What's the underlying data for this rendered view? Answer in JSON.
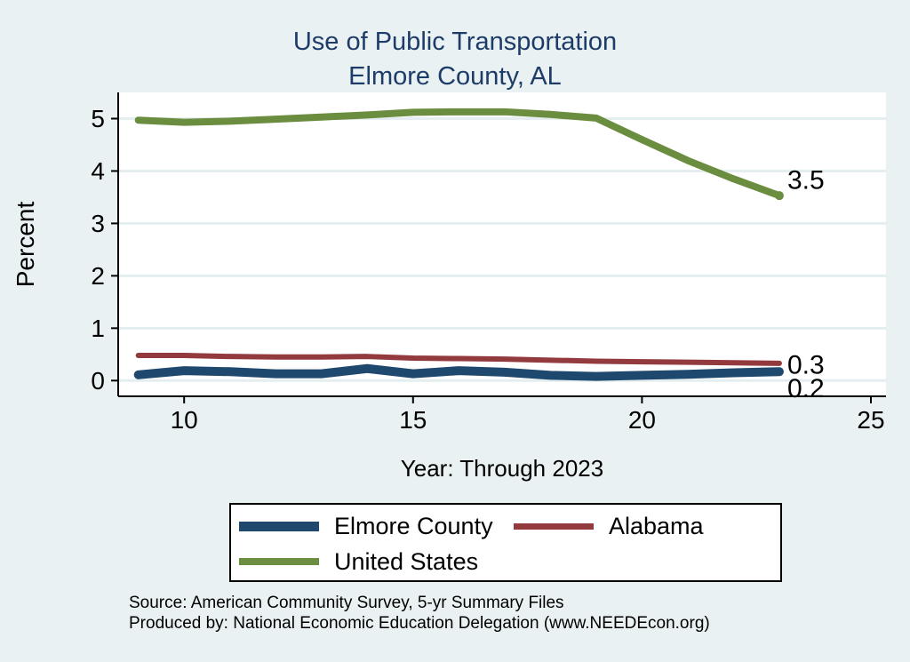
{
  "colors": {
    "background": "#e9f1f2",
    "plot_background": "#ffffff",
    "gridline": "#e4eef0",
    "axis": "#000000",
    "title": "#1e3c69",
    "text": "#000000"
  },
  "footer": {
    "line1": "Source: American Community Survey, 5-yr Summary Files",
    "line2": "Produced by: National Economic Education Delegation (www.NEEDEcon.org)"
  },
  "chart_data": {
    "type": "line",
    "title": "Use of Public Transportation",
    "subtitle": "Elmore County, AL",
    "xlabel": "Year: Through 2023",
    "ylabel": "Percent",
    "x": [
      9,
      10,
      11,
      12,
      13,
      14,
      15,
      16,
      17,
      18,
      19,
      20,
      21,
      22,
      23
    ],
    "xticks": [
      10,
      15,
      20,
      25
    ],
    "yticks": [
      0,
      1,
      2,
      3,
      4,
      5
    ],
    "xlim": [
      8.56,
      25.33
    ],
    "ylim": [
      -0.3,
      5.5
    ],
    "grid": true,
    "legend_position": "bottom",
    "series": [
      {
        "name": "Elmore County",
        "color": "#1f486e",
        "line_width": 10,
        "values": [
          0.11,
          0.19,
          0.17,
          0.13,
          0.13,
          0.23,
          0.13,
          0.19,
          0.16,
          0.1,
          0.08,
          0.1,
          0.12,
          0.15,
          0.17
        ],
        "end_label": "0.2",
        "end_marker": false
      },
      {
        "name": "Alabama",
        "color": "#933a3e",
        "line_width": 6,
        "values": [
          0.48,
          0.48,
          0.46,
          0.45,
          0.45,
          0.46,
          0.43,
          0.42,
          0.41,
          0.39,
          0.37,
          0.36,
          0.35,
          0.34,
          0.33
        ],
        "end_label": "0.3",
        "end_marker": false
      },
      {
        "name": "United States",
        "color": "#6b8d3f",
        "line_width": 8,
        "values": [
          4.97,
          4.93,
          4.95,
          4.99,
          5.03,
          5.07,
          5.12,
          5.13,
          5.13,
          5.08,
          5.01,
          4.6,
          4.2,
          3.85,
          3.53
        ],
        "end_label": "3.5",
        "end_marker": true
      }
    ]
  }
}
